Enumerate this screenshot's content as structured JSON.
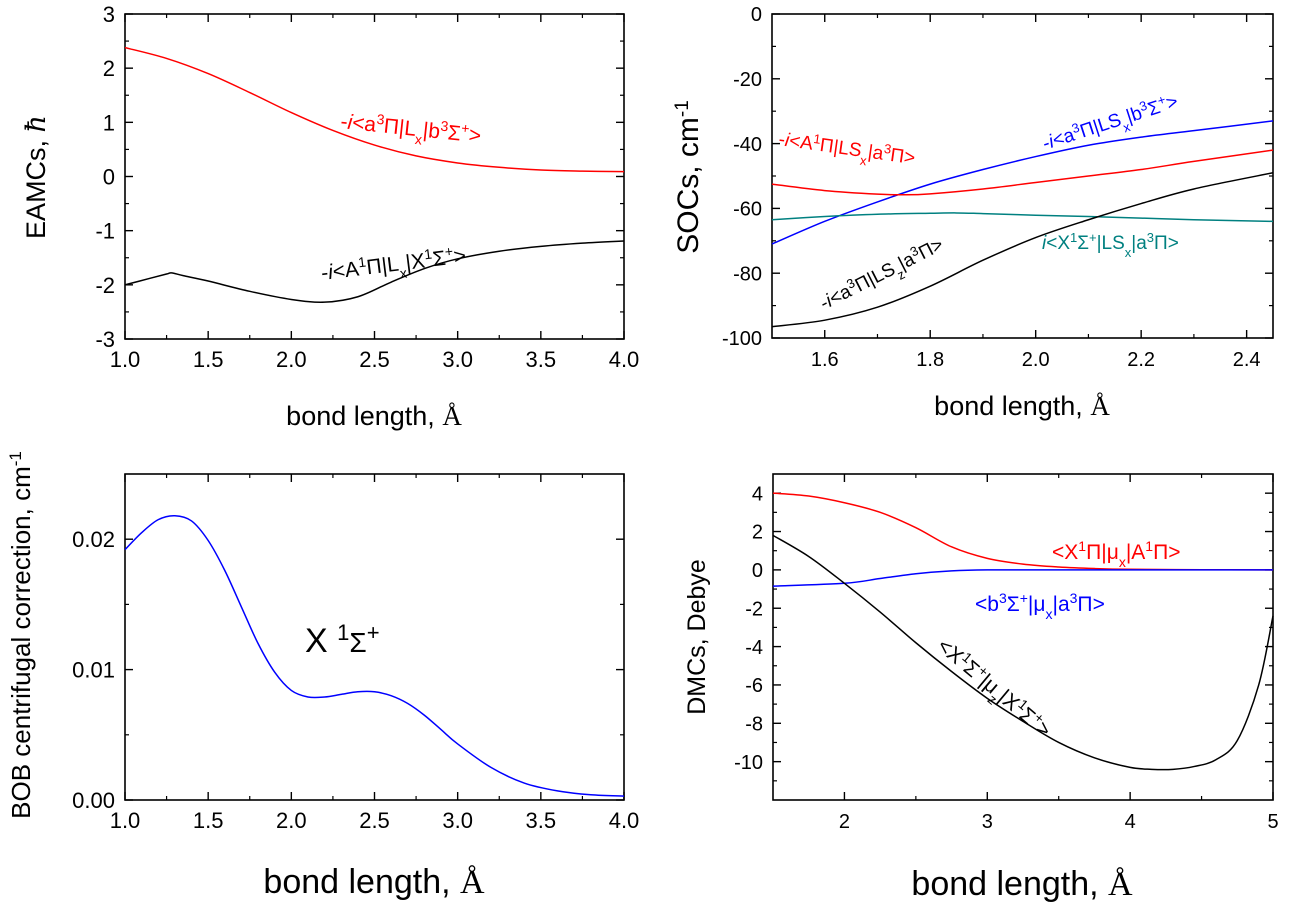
{
  "chart_data": [
    {
      "type": "line",
      "id": "eamc",
      "xlabel": "bond length, Å",
      "ylabel": "EAMCs, ħ",
      "xlim": [
        1.0,
        4.0
      ],
      "ylim": [
        -3,
        3
      ],
      "xticks": [
        1.0,
        1.5,
        2.0,
        2.5,
        3.0,
        3.5,
        4.0
      ],
      "xtick_labels": [
        "1.0",
        "1.5",
        "2.0",
        "2.5",
        "3.0",
        "3.5",
        "4.0"
      ],
      "yticks": [
        -3,
        -2,
        -1,
        0,
        1,
        2,
        3
      ],
      "ytick_labels": [
        "-3",
        "-2",
        "-1",
        "0",
        "1",
        "2",
        "3"
      ],
      "series": [
        {
          "name": "-i<a³Π|Lx|b³Σ⁺>",
          "color": "#ff0000",
          "x": [
            1.0,
            1.25,
            1.5,
            1.75,
            2.0,
            2.25,
            2.5,
            2.75,
            3.0,
            3.25,
            3.5,
            3.75,
            4.0
          ],
          "y": [
            2.38,
            2.18,
            1.9,
            1.55,
            1.18,
            0.85,
            0.58,
            0.38,
            0.25,
            0.17,
            0.12,
            0.1,
            0.09
          ]
        },
        {
          "name": "-i<A¹Π|Lx|X¹Σ⁺>",
          "color": "#000000",
          "x": [
            1.0,
            1.15,
            1.25,
            1.28,
            1.35,
            1.5,
            1.75,
            2.0,
            2.2,
            2.4,
            2.6,
            2.8,
            3.0,
            3.25,
            3.5,
            3.75,
            4.0
          ],
          "y": [
            -2.0,
            -1.88,
            -1.8,
            -1.78,
            -1.83,
            -1.93,
            -2.12,
            -2.27,
            -2.32,
            -2.22,
            -1.95,
            -1.7,
            -1.52,
            -1.38,
            -1.29,
            -1.23,
            -1.19
          ]
        }
      ]
    },
    {
      "type": "line",
      "id": "soc",
      "xlabel": "bond length, Å",
      "ylabel": "SOCs, cm⁻¹",
      "xlim": [
        1.5,
        2.45
      ],
      "ylim": [
        -100,
        0
      ],
      "xticks": [
        1.6,
        1.8,
        2.0,
        2.2,
        2.4
      ],
      "xtick_labels": [
        "1.6",
        "1.8",
        "2.0",
        "2.2",
        "2.4"
      ],
      "yticks": [
        -100,
        -80,
        -60,
        -40,
        -20,
        0
      ],
      "ytick_labels": [
        "-100",
        "-80",
        "-60",
        "-40",
        "-20",
        "0"
      ],
      "series": [
        {
          "name": "-i<a³Π|LSx|b³Σ⁺>",
          "color": "#0000ff",
          "x": [
            1.5,
            1.6,
            1.7,
            1.8,
            1.9,
            2.0,
            2.1,
            2.2,
            2.3,
            2.45
          ],
          "y": [
            -71,
            -64,
            -58,
            -52.5,
            -48,
            -44,
            -40.5,
            -38,
            -36,
            -33
          ]
        },
        {
          "name": "-i<A¹Π|LSx|a³Π>",
          "color": "#ff0000",
          "x": [
            1.5,
            1.6,
            1.7,
            1.75,
            1.8,
            1.9,
            2.0,
            2.1,
            2.2,
            2.3,
            2.45
          ],
          "y": [
            -52.5,
            -54.5,
            -55.6,
            -55.8,
            -55.5,
            -54,
            -52,
            -50,
            -48,
            -45.5,
            -42
          ]
        },
        {
          "name": "i<X¹Σ⁺|LSx|a³Π>",
          "color": "#008080",
          "x": [
            1.5,
            1.6,
            1.7,
            1.8,
            1.85,
            1.9,
            2.0,
            2.1,
            2.2,
            2.3,
            2.45
          ],
          "y": [
            -63.5,
            -62.5,
            -61.8,
            -61.5,
            -61.4,
            -61.6,
            -62.1,
            -62.5,
            -63,
            -63.5,
            -64
          ]
        },
        {
          "name": "-i<a³Π|LSz|a³Π>",
          "color": "#000000",
          "x": [
            1.5,
            1.6,
            1.7,
            1.8,
            1.9,
            2.0,
            2.1,
            2.2,
            2.3,
            2.45
          ],
          "y": [
            -96.5,
            -94.5,
            -90.5,
            -84,
            -76,
            -69,
            -63.5,
            -58.5,
            -54,
            -49
          ]
        }
      ]
    },
    {
      "type": "line",
      "id": "bob",
      "xlabel": "bond length, Å",
      "ylabel": "BOB centrifugal correction, cm",
      "ylabel_sup": "-1",
      "annotation": "X ¹Σ⁺",
      "xlim": [
        1.0,
        4.0
      ],
      "ylim": [
        0.0,
        0.025
      ],
      "xticks": [
        1.0,
        1.5,
        2.0,
        2.5,
        3.0,
        3.5,
        4.0
      ],
      "xtick_labels": [
        "1.0",
        "1.5",
        "2.0",
        "2.5",
        "3.0",
        "3.5",
        "4.0"
      ],
      "yticks": [
        0.0,
        0.01,
        0.02
      ],
      "ytick_labels": [
        "0.00",
        "0.01",
        "0.02"
      ],
      "series": [
        {
          "name": "X ¹Σ⁺",
          "color": "#0000ff",
          "x": [
            1.0,
            1.1,
            1.2,
            1.3,
            1.4,
            1.5,
            1.6,
            1.7,
            1.8,
            1.9,
            2.0,
            2.1,
            2.2,
            2.3,
            2.4,
            2.5,
            2.6,
            2.7,
            2.8,
            2.9,
            3.0,
            3.2,
            3.4,
            3.6,
            3.8,
            4.0
          ],
          "y": [
            0.0192,
            0.0205,
            0.0215,
            0.0218,
            0.0214,
            0.0199,
            0.0176,
            0.0148,
            0.012,
            0.0098,
            0.0084,
            0.0079,
            0.0079,
            0.0081,
            0.0083,
            0.0083,
            0.008,
            0.0074,
            0.0065,
            0.0054,
            0.0043,
            0.0025,
            0.0013,
            0.0007,
            0.0004,
            0.0003
          ]
        }
      ]
    },
    {
      "type": "line",
      "id": "dmc",
      "xlabel": "bond length, Å",
      "ylabel": "DMCs, Debye",
      "xlim": [
        1.5,
        5.0
      ],
      "ylim": [
        -12,
        5
      ],
      "xticks": [
        2,
        3,
        4,
        5
      ],
      "xtick_labels": [
        "2",
        "3",
        "4",
        "5"
      ],
      "yticks": [
        -10,
        -8,
        -6,
        -4,
        -2,
        0,
        2,
        4
      ],
      "ytick_labels": [
        "-10",
        "-8",
        "-6",
        "-4",
        "-2",
        "0",
        "2",
        "4"
      ],
      "series": [
        {
          "name": "<X¹Π|μx|A¹Π>",
          "color": "#ff0000",
          "x": [
            1.5,
            1.75,
            2.0,
            2.25,
            2.5,
            2.75,
            3.0,
            3.25,
            3.5,
            3.75,
            4.0,
            4.5,
            5.0
          ],
          "y": [
            4.0,
            3.85,
            3.5,
            3.0,
            2.2,
            1.2,
            0.6,
            0.3,
            0.15,
            0.07,
            0.03,
            0.01,
            0.0
          ]
        },
        {
          "name": "<b³Σ⁺|μx|a³Π>",
          "color": "#0000ff",
          "x": [
            1.5,
            2.0,
            2.25,
            2.5,
            2.75,
            3.0,
            3.5,
            4.0,
            4.5,
            5.0
          ],
          "y": [
            -0.85,
            -0.7,
            -0.45,
            -0.2,
            -0.05,
            0.0,
            0.0,
            0.0,
            0.0,
            0.0
          ]
        },
        {
          "name": "<X¹Σ⁺|μz|X¹Σ⁺>",
          "color": "#000000",
          "x": [
            1.5,
            1.75,
            2.0,
            2.25,
            2.5,
            2.75,
            3.0,
            3.25,
            3.5,
            3.75,
            4.0,
            4.15,
            4.3,
            4.45,
            4.6,
            4.75,
            4.9,
            5.0
          ],
          "y": [
            1.8,
            0.7,
            -0.7,
            -2.2,
            -3.8,
            -5.3,
            -6.7,
            -7.9,
            -9.0,
            -9.8,
            -10.3,
            -10.4,
            -10.4,
            -10.25,
            -9.9,
            -8.9,
            -6.0,
            -2.4
          ]
        }
      ]
    }
  ],
  "labels": {
    "eamc_red": "-i<a³Π|Lx|b³Σ⁺>",
    "eamc_black": "-i<A¹Π|Lx|X¹Σ⁺>",
    "soc_blue": "-i<a³Π|LSx|b³Σ⁺>",
    "soc_red": "-i<A¹Π|LSx|a³Π>",
    "soc_teal": "i<X¹Σ⁺|LSx|a³Π>",
    "soc_black": "-i<a³Π|LSz|a³Π>",
    "dmc_red": "<X¹Π|μx|A¹Π>",
    "dmc_blue": "<b³Σ⁺|μx|a³Π>",
    "dmc_black": "<X¹Σ⁺|μz|X¹Σ⁺>"
  }
}
